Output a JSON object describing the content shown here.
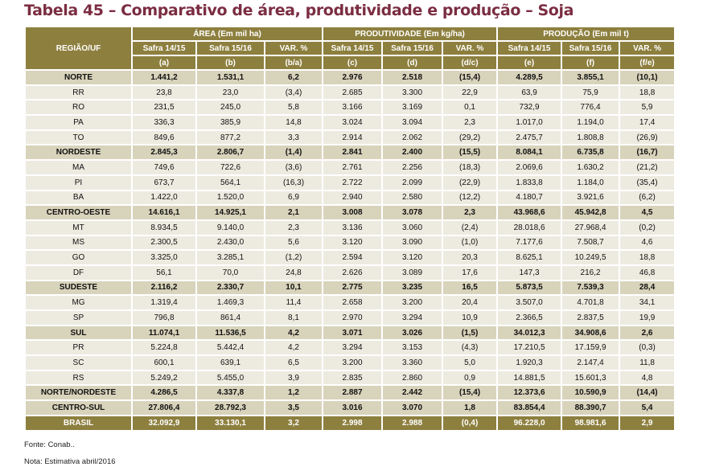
{
  "title": "Tabela 45 – Comparativo de área, produtividade e produção – Soja",
  "header": {
    "region": "REGIÃO/UF",
    "groups": [
      "ÁREA (Em mil ha)",
      "PRODUTIVIDADE (Em kg/ha)",
      "PRODUÇÃO (Em mil t)"
    ],
    "subcols": [
      "Safra 14/15",
      "Safra 15/16",
      "VAR. %",
      "Safra 14/15",
      "Safra 15/16",
      "VAR. %",
      "Safra 14/15",
      "Safra 15/16",
      "VAR. %"
    ],
    "letters": [
      "(a)",
      "(b)",
      "(b/a)",
      "(c)",
      "(d)",
      "(d/c)",
      "(e)",
      "(f)",
      "(f/e)"
    ]
  },
  "rows": [
    {
      "type": "bold",
      "cells": [
        "NORTE",
        "1.441,2",
        "1.531,1",
        "6,2",
        "2.976",
        "2.518",
        "(15,4)",
        "4.289,5",
        "3.855,1",
        "(10,1)"
      ]
    },
    {
      "type": "norm",
      "cells": [
        "RR",
        "23,8",
        "23,0",
        "(3,4)",
        "2.685",
        "3.300",
        "22,9",
        "63,9",
        "75,9",
        "18,8"
      ]
    },
    {
      "type": "norm",
      "cells": [
        "RO",
        "231,5",
        "245,0",
        "5,8",
        "3.166",
        "3.169",
        "0,1",
        "732,9",
        "776,4",
        "5,9"
      ]
    },
    {
      "type": "norm",
      "cells": [
        "PA",
        "336,3",
        "385,9",
        "14,8",
        "3.024",
        "3.094",
        "2,3",
        "1.017,0",
        "1.194,0",
        "17,4"
      ]
    },
    {
      "type": "norm",
      "cells": [
        "TO",
        "849,6",
        "877,2",
        "3,3",
        "2.914",
        "2.062",
        "(29,2)",
        "2.475,7",
        "1.808,8",
        "(26,9)"
      ]
    },
    {
      "type": "bold",
      "cells": [
        "NORDESTE",
        "2.845,3",
        "2.806,7",
        "(1,4)",
        "2.841",
        "2.400",
        "(15,5)",
        "8.084,1",
        "6.735,8",
        "(16,7)"
      ]
    },
    {
      "type": "norm",
      "cells": [
        "MA",
        "749,6",
        "722,6",
        "(3,6)",
        "2.761",
        "2.256",
        "(18,3)",
        "2.069,6",
        "1.630,2",
        "(21,2)"
      ]
    },
    {
      "type": "norm",
      "cells": [
        "PI",
        "673,7",
        "564,1",
        "(16,3)",
        "2.722",
        "2.099",
        "(22,9)",
        "1.833,8",
        "1.184,0",
        "(35,4)"
      ]
    },
    {
      "type": "norm",
      "cells": [
        "BA",
        "1.422,0",
        "1.520,0",
        "6,9",
        "2.940",
        "2.580",
        "(12,2)",
        "4.180,7",
        "3.921,6",
        "(6,2)"
      ]
    },
    {
      "type": "bold",
      "cells": [
        "CENTRO-OESTE",
        "14.616,1",
        "14.925,1",
        "2,1",
        "3.008",
        "3.078",
        "2,3",
        "43.968,6",
        "45.942,8",
        "4,5"
      ]
    },
    {
      "type": "norm",
      "cells": [
        "MT",
        "8.934,5",
        "9.140,0",
        "2,3",
        "3.136",
        "3.060",
        "(2,4)",
        "28.018,6",
        "27.968,4",
        "(0,2)"
      ]
    },
    {
      "type": "norm",
      "cells": [
        "MS",
        "2.300,5",
        "2.430,0",
        "5,6",
        "3.120",
        "3.090",
        "(1,0)",
        "7.177,6",
        "7.508,7",
        "4,6"
      ]
    },
    {
      "type": "norm",
      "cells": [
        "GO",
        "3.325,0",
        "3.285,1",
        "(1,2)",
        "2.594",
        "3.120",
        "20,3",
        "8.625,1",
        "10.249,5",
        "18,8"
      ]
    },
    {
      "type": "norm",
      "cells": [
        "DF",
        "56,1",
        "70,0",
        "24,8",
        "2.626",
        "3.089",
        "17,6",
        "147,3",
        "216,2",
        "46,8"
      ]
    },
    {
      "type": "bold",
      "cells": [
        "SUDESTE",
        "2.116,2",
        "2.330,7",
        "10,1",
        "2.775",
        "3.235",
        "16,5",
        "5.873,5",
        "7.539,3",
        "28,4"
      ]
    },
    {
      "type": "norm",
      "cells": [
        "MG",
        "1.319,4",
        "1.469,3",
        "11,4",
        "2.658",
        "3.200",
        "20,4",
        "3.507,0",
        "4.701,8",
        "34,1"
      ]
    },
    {
      "type": "norm",
      "cells": [
        "SP",
        "796,8",
        "861,4",
        "8,1",
        "2.970",
        "3.294",
        "10,9",
        "2.366,5",
        "2.837,5",
        "19,9"
      ]
    },
    {
      "type": "bold",
      "cells": [
        "SUL",
        "11.074,1",
        "11.536,5",
        "4,2",
        "3.071",
        "3.026",
        "(1,5)",
        "34.012,3",
        "34.908,6",
        "2,6"
      ]
    },
    {
      "type": "norm",
      "cells": [
        "PR",
        "5.224,8",
        "5.442,4",
        "4,2",
        "3.294",
        "3.153",
        "(4,3)",
        "17.210,5",
        "17.159,9",
        "(0,3)"
      ]
    },
    {
      "type": "norm",
      "cells": [
        "SC",
        "600,1",
        "639,1",
        "6,5",
        "3.200",
        "3.360",
        "5,0",
        "1.920,3",
        "2.147,4",
        "11,8"
      ]
    },
    {
      "type": "norm",
      "cells": [
        "RS",
        "5.249,2",
        "5.455,0",
        "3,9",
        "2.835",
        "2.860",
        "0,9",
        "14.881,5",
        "15.601,3",
        "4,8"
      ]
    },
    {
      "type": "bold",
      "cells": [
        "NORTE/NORDESTE",
        "4.286,5",
        "4.337,8",
        "1,2",
        "2.887",
        "2.442",
        "(15,4)",
        "12.373,6",
        "10.590,9",
        "(14,4)"
      ]
    },
    {
      "type": "bold",
      "cells": [
        "CENTRO-SUL",
        "27.806,4",
        "28.792,3",
        "3,5",
        "3.016",
        "3.070",
        "1,8",
        "83.854,4",
        "88.390,7",
        "5,4"
      ]
    },
    {
      "type": "total",
      "cells": [
        "BRASIL",
        "32.092,9",
        "33.130,1",
        "3,2",
        "2.998",
        "2.988",
        "(0,4)",
        "96.228,0",
        "98.981,6",
        "2,9"
      ]
    }
  ],
  "footer": {
    "source": "Fonte: Conab..",
    "note": "Nota: Estimativa abril/2016"
  },
  "colors": {
    "header": "#8d7f3e",
    "subtotal": "#d8d3bb",
    "row": "#edebe0",
    "title": "#7b2d42"
  }
}
